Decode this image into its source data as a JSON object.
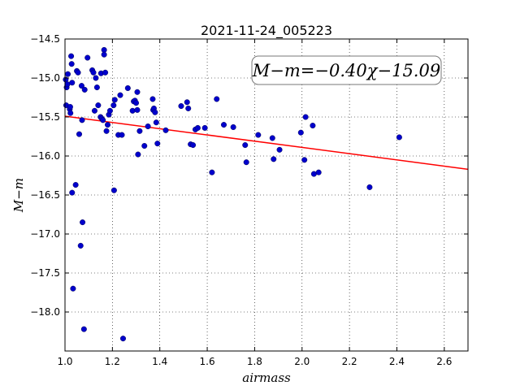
{
  "chart_data": {
    "type": "scatter",
    "title": "2021-11-24_005223",
    "xlabel": "airmass",
    "ylabel": "M−m",
    "xlim": [
      1.0,
      2.7
    ],
    "ylim": [
      -18.5,
      -14.5
    ],
    "y_inverted": true,
    "grid": true,
    "xticks": [
      1.0,
      1.2,
      1.4,
      1.6,
      1.8,
      2.0,
      2.2,
      2.4,
      2.6
    ],
    "xtick_labels": [
      "1.0",
      "1.2",
      "1.4",
      "1.6",
      "1.8",
      "2.0",
      "2.2",
      "2.4",
      "2.6"
    ],
    "yticks": [
      -14.5,
      -15.0,
      -15.5,
      -16.0,
      -16.5,
      -17.0,
      -17.5,
      -18.0
    ],
    "ytick_labels": [
      "−14.5",
      "−15.0",
      "−15.5",
      "−16.0",
      "−16.5",
      "−17.0",
      "−17.5",
      "−18.0"
    ],
    "annotation": "M−m=−0.40χ−15.09",
    "annotation_placement": "top-right",
    "fit_line": {
      "slope": -0.4,
      "intercept": -15.09,
      "color": "#ff0000"
    },
    "point_color": "#0000cc",
    "points": [
      [
        1.003,
        -15.02
      ],
      [
        1.005,
        -15.35
      ],
      [
        1.007,
        -15.12
      ],
      [
        1.01,
        -15.08
      ],
      [
        1.012,
        -14.95
      ],
      [
        1.02,
        -15.4
      ],
      [
        1.022,
        -15.37
      ],
      [
        1.023,
        -15.45
      ],
      [
        1.026,
        -14.72
      ],
      [
        1.028,
        -14.82
      ],
      [
        1.03,
        -15.06
      ],
      [
        1.03,
        -16.47
      ],
      [
        1.034,
        -17.7
      ],
      [
        1.045,
        -16.37
      ],
      [
        1.05,
        -14.91
      ],
      [
        1.055,
        -14.93
      ],
      [
        1.06,
        -15.72
      ],
      [
        1.066,
        -17.15
      ],
      [
        1.07,
        -15.1
      ],
      [
        1.072,
        -15.54
      ],
      [
        1.074,
        -16.85
      ],
      [
        1.08,
        -18.22
      ],
      [
        1.083,
        -15.15
      ],
      [
        1.095,
        -14.74
      ],
      [
        1.115,
        -14.9
      ],
      [
        1.12,
        -14.93
      ],
      [
        1.125,
        -15.42
      ],
      [
        1.13,
        -15.0
      ],
      [
        1.135,
        -15.12
      ],
      [
        1.14,
        -15.35
      ],
      [
        1.15,
        -15.5
      ],
      [
        1.152,
        -14.94
      ],
      [
        1.155,
        -15.52
      ],
      [
        1.16,
        -15.54
      ],
      [
        1.165,
        -14.64
      ],
      [
        1.165,
        -14.7
      ],
      [
        1.17,
        -14.93
      ],
      [
        1.175,
        -15.68
      ],
      [
        1.18,
        -15.6
      ],
      [
        1.185,
        -15.47
      ],
      [
        1.19,
        -15.42
      ],
      [
        1.205,
        -15.35
      ],
      [
        1.207,
        -16.44
      ],
      [
        1.21,
        -15.28
      ],
      [
        1.225,
        -15.73
      ],
      [
        1.233,
        -15.22
      ],
      [
        1.24,
        -15.73
      ],
      [
        1.245,
        -18.34
      ],
      [
        1.265,
        -15.13
      ],
      [
        1.285,
        -15.42
      ],
      [
        1.29,
        -15.3
      ],
      [
        1.295,
        -15.29
      ],
      [
        1.3,
        -15.32
      ],
      [
        1.305,
        -15.18
      ],
      [
        1.305,
        -15.41
      ],
      [
        1.308,
        -15.98
      ],
      [
        1.315,
        -15.68
      ],
      [
        1.335,
        -15.87
      ],
      [
        1.35,
        -15.62
      ],
      [
        1.37,
        -15.27
      ],
      [
        1.372,
        -15.41
      ],
      [
        1.375,
        -15.39
      ],
      [
        1.38,
        -15.44
      ],
      [
        1.385,
        -15.57
      ],
      [
        1.39,
        -15.84
      ],
      [
        1.425,
        -15.67
      ],
      [
        1.49,
        -15.36
      ],
      [
        1.515,
        -15.31
      ],
      [
        1.52,
        -15.39
      ],
      [
        1.53,
        -15.85
      ],
      [
        1.54,
        -15.86
      ],
      [
        1.55,
        -15.66
      ],
      [
        1.56,
        -15.64
      ],
      [
        1.59,
        -15.64
      ],
      [
        1.62,
        -16.21
      ],
      [
        1.64,
        -15.27
      ],
      [
        1.67,
        -15.6
      ],
      [
        1.71,
        -15.63
      ],
      [
        1.76,
        -15.86
      ],
      [
        1.765,
        -16.08
      ],
      [
        1.815,
        -15.73
      ],
      [
        1.875,
        -15.77
      ],
      [
        1.88,
        -16.04
      ],
      [
        1.905,
        -15.92
      ],
      [
        1.995,
        -15.7
      ],
      [
        2.01,
        -16.05
      ],
      [
        2.015,
        -15.5
      ],
      [
        2.045,
        -15.61
      ],
      [
        2.05,
        -16.23
      ],
      [
        2.07,
        -16.21
      ],
      [
        2.285,
        -16.4
      ],
      [
        2.41,
        -15.76
      ]
    ]
  }
}
